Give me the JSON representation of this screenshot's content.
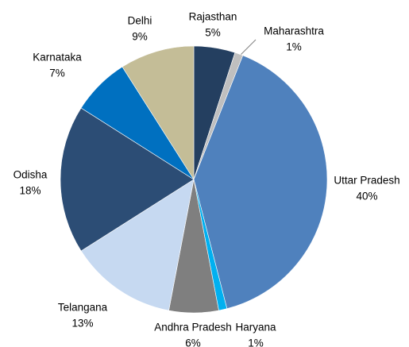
{
  "chart_data": {
    "type": "pie",
    "categories": [
      "Rajasthan",
      "Maharashtra",
      "Uttar Pradesh",
      "Haryana",
      "Andhra Pradesh",
      "Telangana",
      "Odisha",
      "Karnataka",
      "Delhi"
    ],
    "values": [
      5,
      1,
      40,
      1,
      6,
      13,
      18,
      7,
      9
    ],
    "value_labels": [
      "5%",
      "1%",
      "40%",
      "1%",
      "6%",
      "13%",
      "18%",
      "7%",
      "9%"
    ],
    "colors": [
      "#243f60",
      "#bfbfbf",
      "#4f81bd",
      "#00b0f0",
      "#7f7f7f",
      "#c6d9f1",
      "#2c4d75",
      "#0070c0",
      "#c4bd97"
    ]
  }
}
